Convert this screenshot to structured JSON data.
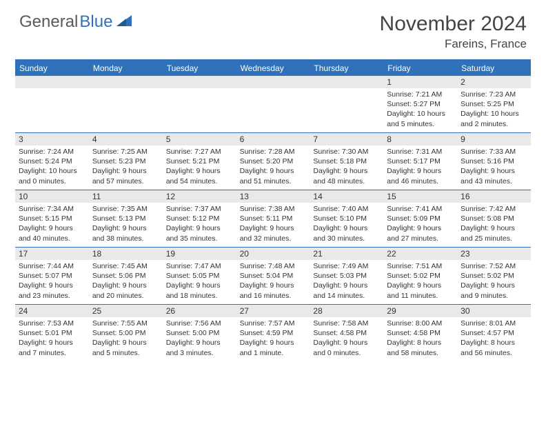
{
  "brand": {
    "part1": "General",
    "part2": "Blue"
  },
  "title": "November 2024",
  "location": "Fareins, France",
  "colors": {
    "accent": "#2f72b9",
    "header_text": "#444",
    "grid_bg": "#e9e9e9",
    "text": "#333"
  },
  "weekdays": [
    "Sunday",
    "Monday",
    "Tuesday",
    "Wednesday",
    "Thursday",
    "Friday",
    "Saturday"
  ],
  "weeks": [
    [
      null,
      null,
      null,
      null,
      null,
      {
        "n": "1",
        "sunrise": "Sunrise: 7:21 AM",
        "sunset": "Sunset: 5:27 PM",
        "daylight": "Daylight: 10 hours and 5 minutes."
      },
      {
        "n": "2",
        "sunrise": "Sunrise: 7:23 AM",
        "sunset": "Sunset: 5:25 PM",
        "daylight": "Daylight: 10 hours and 2 minutes."
      }
    ],
    [
      {
        "n": "3",
        "sunrise": "Sunrise: 7:24 AM",
        "sunset": "Sunset: 5:24 PM",
        "daylight": "Daylight: 10 hours and 0 minutes."
      },
      {
        "n": "4",
        "sunrise": "Sunrise: 7:25 AM",
        "sunset": "Sunset: 5:23 PM",
        "daylight": "Daylight: 9 hours and 57 minutes."
      },
      {
        "n": "5",
        "sunrise": "Sunrise: 7:27 AM",
        "sunset": "Sunset: 5:21 PM",
        "daylight": "Daylight: 9 hours and 54 minutes."
      },
      {
        "n": "6",
        "sunrise": "Sunrise: 7:28 AM",
        "sunset": "Sunset: 5:20 PM",
        "daylight": "Daylight: 9 hours and 51 minutes."
      },
      {
        "n": "7",
        "sunrise": "Sunrise: 7:30 AM",
        "sunset": "Sunset: 5:18 PM",
        "daylight": "Daylight: 9 hours and 48 minutes."
      },
      {
        "n": "8",
        "sunrise": "Sunrise: 7:31 AM",
        "sunset": "Sunset: 5:17 PM",
        "daylight": "Daylight: 9 hours and 46 minutes."
      },
      {
        "n": "9",
        "sunrise": "Sunrise: 7:33 AM",
        "sunset": "Sunset: 5:16 PM",
        "daylight": "Daylight: 9 hours and 43 minutes."
      }
    ],
    [
      {
        "n": "10",
        "sunrise": "Sunrise: 7:34 AM",
        "sunset": "Sunset: 5:15 PM",
        "daylight": "Daylight: 9 hours and 40 minutes."
      },
      {
        "n": "11",
        "sunrise": "Sunrise: 7:35 AM",
        "sunset": "Sunset: 5:13 PM",
        "daylight": "Daylight: 9 hours and 38 minutes."
      },
      {
        "n": "12",
        "sunrise": "Sunrise: 7:37 AM",
        "sunset": "Sunset: 5:12 PM",
        "daylight": "Daylight: 9 hours and 35 minutes."
      },
      {
        "n": "13",
        "sunrise": "Sunrise: 7:38 AM",
        "sunset": "Sunset: 5:11 PM",
        "daylight": "Daylight: 9 hours and 32 minutes."
      },
      {
        "n": "14",
        "sunrise": "Sunrise: 7:40 AM",
        "sunset": "Sunset: 5:10 PM",
        "daylight": "Daylight: 9 hours and 30 minutes."
      },
      {
        "n": "15",
        "sunrise": "Sunrise: 7:41 AM",
        "sunset": "Sunset: 5:09 PM",
        "daylight": "Daylight: 9 hours and 27 minutes."
      },
      {
        "n": "16",
        "sunrise": "Sunrise: 7:42 AM",
        "sunset": "Sunset: 5:08 PM",
        "daylight": "Daylight: 9 hours and 25 minutes."
      }
    ],
    [
      {
        "n": "17",
        "sunrise": "Sunrise: 7:44 AM",
        "sunset": "Sunset: 5:07 PM",
        "daylight": "Daylight: 9 hours and 23 minutes."
      },
      {
        "n": "18",
        "sunrise": "Sunrise: 7:45 AM",
        "sunset": "Sunset: 5:06 PM",
        "daylight": "Daylight: 9 hours and 20 minutes."
      },
      {
        "n": "19",
        "sunrise": "Sunrise: 7:47 AM",
        "sunset": "Sunset: 5:05 PM",
        "daylight": "Daylight: 9 hours and 18 minutes."
      },
      {
        "n": "20",
        "sunrise": "Sunrise: 7:48 AM",
        "sunset": "Sunset: 5:04 PM",
        "daylight": "Daylight: 9 hours and 16 minutes."
      },
      {
        "n": "21",
        "sunrise": "Sunrise: 7:49 AM",
        "sunset": "Sunset: 5:03 PM",
        "daylight": "Daylight: 9 hours and 14 minutes."
      },
      {
        "n": "22",
        "sunrise": "Sunrise: 7:51 AM",
        "sunset": "Sunset: 5:02 PM",
        "daylight": "Daylight: 9 hours and 11 minutes."
      },
      {
        "n": "23",
        "sunrise": "Sunrise: 7:52 AM",
        "sunset": "Sunset: 5:02 PM",
        "daylight": "Daylight: 9 hours and 9 minutes."
      }
    ],
    [
      {
        "n": "24",
        "sunrise": "Sunrise: 7:53 AM",
        "sunset": "Sunset: 5:01 PM",
        "daylight": "Daylight: 9 hours and 7 minutes."
      },
      {
        "n": "25",
        "sunrise": "Sunrise: 7:55 AM",
        "sunset": "Sunset: 5:00 PM",
        "daylight": "Daylight: 9 hours and 5 minutes."
      },
      {
        "n": "26",
        "sunrise": "Sunrise: 7:56 AM",
        "sunset": "Sunset: 5:00 PM",
        "daylight": "Daylight: 9 hours and 3 minutes."
      },
      {
        "n": "27",
        "sunrise": "Sunrise: 7:57 AM",
        "sunset": "Sunset: 4:59 PM",
        "daylight": "Daylight: 9 hours and 1 minute."
      },
      {
        "n": "28",
        "sunrise": "Sunrise: 7:58 AM",
        "sunset": "Sunset: 4:58 PM",
        "daylight": "Daylight: 9 hours and 0 minutes."
      },
      {
        "n": "29",
        "sunrise": "Sunrise: 8:00 AM",
        "sunset": "Sunset: 4:58 PM",
        "daylight": "Daylight: 8 hours and 58 minutes."
      },
      {
        "n": "30",
        "sunrise": "Sunrise: 8:01 AM",
        "sunset": "Sunset: 4:57 PM",
        "daylight": "Daylight: 8 hours and 56 minutes."
      }
    ]
  ]
}
